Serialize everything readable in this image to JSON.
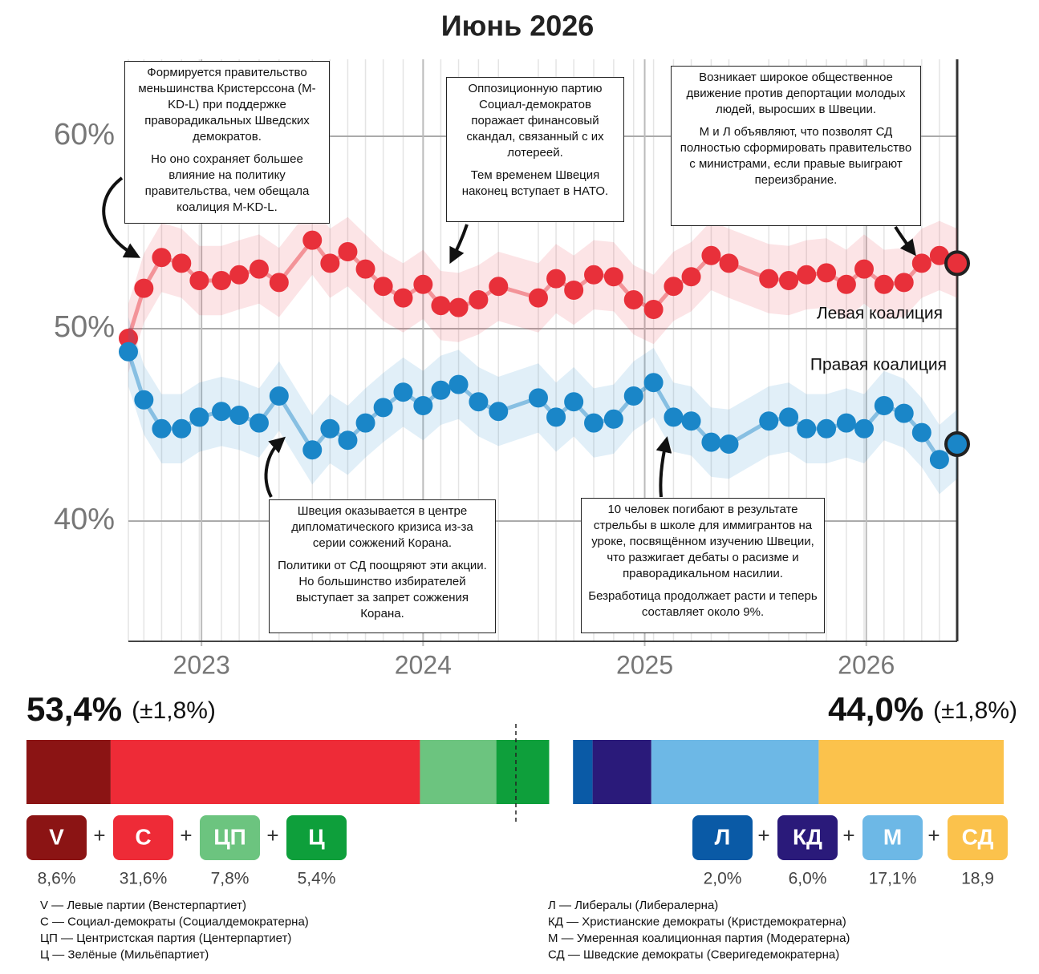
{
  "chart_data": {
    "type": "line",
    "title": "Июнь 2026",
    "x": [
      2022.67,
      2022.74,
      2022.82,
      2022.91,
      2022.99,
      2023.09,
      2023.17,
      2023.26,
      2023.35,
      2023.5,
      2023.58,
      2023.66,
      2023.74,
      2023.82,
      2023.91,
      2024.0,
      2024.08,
      2024.16,
      2024.25,
      2024.34,
      2024.52,
      2024.6,
      2024.68,
      2024.77,
      2024.86,
      2024.95,
      2025.04,
      2025.13,
      2025.21,
      2025.3,
      2025.38,
      2025.56,
      2025.65,
      2025.73,
      2025.82,
      2025.91,
      2025.99,
      2026.08,
      2026.17,
      2026.25,
      2026.33,
      2026.41
    ],
    "xlim": [
      2022.67,
      2026.41
    ],
    "xticks": [
      2023,
      2024,
      2025,
      2026
    ],
    "ylim": [
      33.75,
      64
    ],
    "yticks": [
      {
        "value": 40,
        "label": "40%"
      },
      {
        "value": 50,
        "label": "50%"
      },
      {
        "value": 60,
        "label": "60%"
      }
    ],
    "grid": true,
    "series": [
      {
        "name": "Левая коалиция",
        "color": "#e8303a",
        "values": [
          49.5,
          52.1,
          53.7,
          53.4,
          52.5,
          52.5,
          52.8,
          53.1,
          52.4,
          54.6,
          53.4,
          54.0,
          53.1,
          52.2,
          51.6,
          52.3,
          51.2,
          51.1,
          51.5,
          52.2,
          51.6,
          52.6,
          52.0,
          52.8,
          52.7,
          51.5,
          51.0,
          52.2,
          52.7,
          53.8,
          53.4,
          52.6,
          52.5,
          52.8,
          52.9,
          52.3,
          53.1,
          52.3,
          52.4,
          53.4,
          53.8,
          53.4
        ]
      },
      {
        "name": "Правая коалиция",
        "color": "#1a86c8",
        "values": [
          48.8,
          46.3,
          44.8,
          44.8,
          45.4,
          45.7,
          45.5,
          45.1,
          46.5,
          43.7,
          44.8,
          44.2,
          45.1,
          45.9,
          46.7,
          46.0,
          46.8,
          47.1,
          46.2,
          45.7,
          46.4,
          45.4,
          46.2,
          45.1,
          45.3,
          46.5,
          47.2,
          45.4,
          45.2,
          44.1,
          44.0,
          45.2,
          45.4,
          44.8,
          44.8,
          45.1,
          44.8,
          46.0,
          45.6,
          44.6,
          43.2,
          44.0
        ]
      }
    ],
    "annotations": [
      {
        "paragraphs": [
          "Формируется правительство меньшинства Кристерссона (M-KD-L) при поддержке праворадикальных Шведских демократов.",
          "Но оно сохраняет большее влияние на политику правительства, чем обещала коалиция M-KD-L."
        ]
      },
      {
        "paragraphs": [
          "Оппозиционную партию Социал-демократов поражает финансовый скандал, связанный с их лотереей.",
          "Тем временем Швеция наконец вступает в НАТО."
        ]
      },
      {
        "paragraphs": [
          "Возникает широкое общественное движение против депортации молодых людей, выросших в Швеции.",
          "М и Л объявляют, что позволят СД полностью сформировать правительство с министрами, если правые выиграют переизбрание."
        ]
      },
      {
        "paragraphs": [
          "Швеция оказывается в центре дипломатического кризиса из-за серии сожжений Корана.",
          "Политики от СД поощряют эти акции. Но большинство избирателей выступает за запрет сожжения Корана."
        ]
      },
      {
        "paragraphs": [
          "10 человек погибают в результате стрельбы в школе для иммигрантов на уроке, посвящённом изучению Швеции, что разжигает дебаты о расизме и праворадикальном насилии.",
          "Безработица продолжает расти и теперь составляет около 9%."
        ]
      }
    ]
  },
  "coalitions": [
    {
      "value": 53.4,
      "value_label": "53,4%",
      "margin": 1.8,
      "margin_label": "(±1,8%)",
      "threshold": 50,
      "parties": [
        {
          "abbr": "V",
          "value": 8.6,
          "value_label": "8,6%",
          "color": "#8b1414",
          "description": "V — Левые партии (Венстерпартиет)"
        },
        {
          "abbr": "С",
          "value": 31.6,
          "value_label": "31,6%",
          "color": "#ee2b37",
          "description": "С — Социал-демократы (Социалдемократерна)"
        },
        {
          "abbr": "ЦП",
          "value": 7.8,
          "value_label": "7,8%",
          "color": "#6cc47f",
          "description": "ЦП — Центристская партия (Центерпартиет)"
        },
        {
          "abbr": "Ц",
          "value": 5.4,
          "value_label": "5,4%",
          "color": "#0e9f3b",
          "description": "Ц — Зелёные (Мильёпартиет)"
        }
      ]
    },
    {
      "value": 44.0,
      "value_label": "44,0%",
      "margin": 1.8,
      "margin_label": "(±1,8%)",
      "parties": [
        {
          "abbr": "Л",
          "value": 2.0,
          "value_label": "2,0%",
          "color": "#0a5aa6",
          "description": "Л — Либералы (Либералерна)"
        },
        {
          "abbr": "КД",
          "value": 6.0,
          "value_label": "6,0%",
          "color": "#2a1a7a",
          "description": "КД — Христианские демократы (Кристдемократерна)"
        },
        {
          "abbr": "М",
          "value": 17.1,
          "value_label": "17,1%",
          "color": "#6db8e6",
          "description": "М — Умеренная коалиционная партия (Модератерна)"
        },
        {
          "abbr": "СД",
          "value": 18.9,
          "value_label": "18,9",
          "color": "#fbc24c",
          "description": "СД — Шведские демократы (Сверигедемократерна)"
        }
      ]
    }
  ]
}
